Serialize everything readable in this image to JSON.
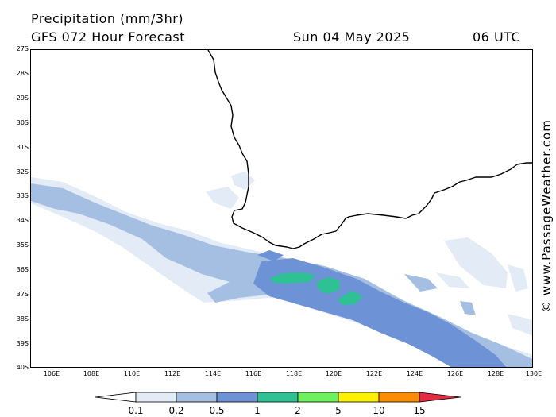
{
  "header": {
    "title": "Precipitation (mm/3hr)",
    "model": "GFS 072 Hour Forecast",
    "date": "Sun 04 May 2025",
    "time": "06 UTC"
  },
  "map": {
    "lat_labels": [
      "27S",
      "28S",
      "29S",
      "30S",
      "31S",
      "32S",
      "33S",
      "34S",
      "35S",
      "36S",
      "37S",
      "38S",
      "39S",
      "40S"
    ],
    "lon_labels": [
      "106E",
      "108E",
      "110E",
      "112E",
      "114E",
      "116E",
      "118E",
      "120E",
      "122E",
      "124E",
      "126E",
      "128E",
      "130E"
    ],
    "watermark": "© www.PassageWeather.com"
  },
  "legend": {
    "labels": [
      "0.1",
      "0.2",
      "0.5",
      "1",
      "2",
      "5",
      "10",
      "15"
    ],
    "colors": [
      "#e3ebf6",
      "#a5bfe2",
      "#6d93d6",
      "#2ec193",
      "#6ef15e",
      "#fdf104",
      "#fb8c04",
      "#e42c44"
    ]
  }
}
